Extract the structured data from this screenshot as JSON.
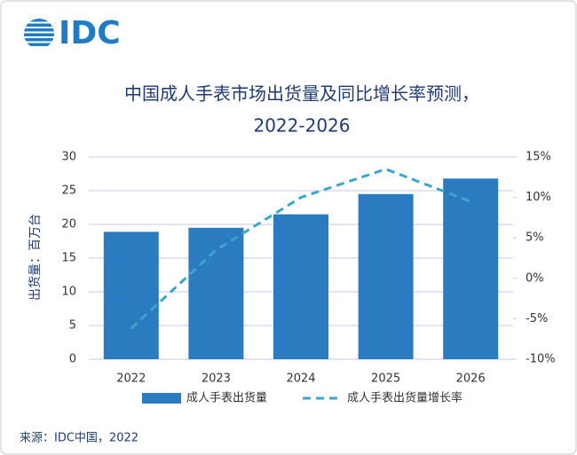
{
  "logo": "IDC",
  "chart_data": {
    "type": "bar_line",
    "title_lines": [
      "中国成人手表市场出货量及同比增长率预测，",
      "2022-2026"
    ],
    "y_axis_label": "出货量：百万台",
    "categories": [
      "2022",
      "2023",
      "2024",
      "2025",
      "2026"
    ],
    "series": [
      {
        "name": "成人手表出货量",
        "type": "bar",
        "color": "#2b7bc0",
        "values": [
          18.9,
          19.5,
          21.5,
          24.5,
          26.8
        ]
      },
      {
        "name": "成人手表出货量增长率",
        "type": "line",
        "dashed": true,
        "color": "#3aa6c9",
        "axis": "y2",
        "values": [
          -6.2,
          3.5,
          10,
          13.5,
          9.5
        ]
      }
    ],
    "ylim": [
      0,
      30
    ],
    "yticks": [
      0,
      5,
      10,
      15,
      20,
      25,
      30
    ],
    "y2lim": [
      -10,
      15
    ],
    "y2ticks": [
      {
        "value": -10,
        "label": "-10%"
      },
      {
        "value": -5,
        "label": "-5%"
      },
      {
        "value": 0,
        "label": "0%"
      },
      {
        "value": 5,
        "label": "5%"
      },
      {
        "value": 10,
        "label": "10%"
      },
      {
        "value": 15,
        "label": "15%"
      }
    ],
    "grid": true,
    "legend": "bottom"
  },
  "source": "来源：IDC中国，2022"
}
